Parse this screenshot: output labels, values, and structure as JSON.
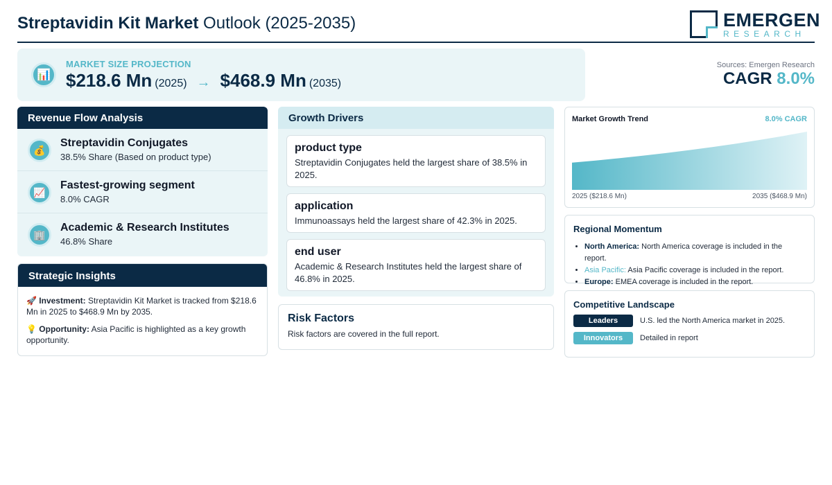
{
  "header": {
    "title_bold": "Streptavidin Kit Market",
    "title_rest": " Outlook (2025-2035)",
    "logo_name": "EMERGEN",
    "logo_sub": "RESEARCH"
  },
  "projection": {
    "label": "MARKET SIZE PROJECTION",
    "icon": "bar-chart-icon",
    "start_value": "$218.6 Mn",
    "start_year": "(2025)",
    "arrow": "→",
    "end_value": "$468.9 Mn",
    "end_year": "(2035)"
  },
  "summary": {
    "sources": "Sources: Emergen Research",
    "cagr_label": "CAGR",
    "cagr_value": "8.0%"
  },
  "revenue_flow": {
    "title": "Revenue Flow Analysis",
    "items": [
      {
        "icon": "money-bag-icon",
        "glyph": "💰",
        "title": "Streptavidin Conjugates",
        "subtitle": "38.5% Share (Based on product type)"
      },
      {
        "icon": "trend-up-icon",
        "glyph": "📈",
        "title": "Fastest-growing segment",
        "subtitle": "8.0% CAGR"
      },
      {
        "icon": "building-icon",
        "glyph": "🏢",
        "title": "Academic & Research Institutes",
        "subtitle": "46.8% Share"
      }
    ]
  },
  "strategic": {
    "title": "Strategic Insights",
    "items": [
      {
        "icon": "rocket-icon",
        "glyph": "🚀",
        "label": "Investment:",
        "text": " Streptavidin Kit Market is tracked from $218.6 Mn in 2025 to $468.9 Mn by 2035."
      },
      {
        "icon": "lightbulb-icon",
        "glyph": "💡",
        "label": "Opportunity:",
        "text": " Asia Pacific is highlighted as a key growth opportunity."
      }
    ]
  },
  "growth_drivers": {
    "title": "Growth Drivers",
    "cards": [
      {
        "title": "product type",
        "text": "Streptavidin Conjugates held the largest share of 38.5% in 2025."
      },
      {
        "title": "application",
        "text": "Immunoassays held the largest share of 42.3% in 2025."
      },
      {
        "title": "end user",
        "text": "Academic & Research Institutes held the largest share of 46.8% in 2025."
      }
    ]
  },
  "risk": {
    "title": "Risk Factors",
    "text": "Risk factors are covered in the full report."
  },
  "trend": {
    "title": "Market Growth Trend",
    "cagr": "8.0% CAGR",
    "start_label": "2025 ($218.6 Mn)",
    "end_label": "2035 ($468.9 Mn)"
  },
  "chart_data": {
    "type": "area",
    "x": [
      2025,
      2035
    ],
    "series": [
      {
        "values": [
          218.6,
          468.9
        ]
      }
    ],
    "colors": {
      "start": "#54b7c8",
      "end": "#dff2f6"
    }
  },
  "regional": {
    "title": "Regional Momentum",
    "items": [
      {
        "region": "North America:",
        "text": " North America coverage is included in the report."
      },
      {
        "region": "Asia Pacific:",
        "text": " Asia Pacific coverage is included in the report."
      },
      {
        "region": "Europe:",
        "text": " EMEA coverage is included in the report."
      }
    ]
  },
  "competitive": {
    "title": "Competitive Landscape",
    "rows": [
      {
        "tag": "Leaders",
        "text": "U.S. led the North America market in 2025."
      },
      {
        "tag": "Innovators",
        "text": "Detailed in report"
      }
    ]
  },
  "colors": {
    "navy": "#0b2a45",
    "teal": "#54b7c8",
    "panel": "#eaf5f7"
  }
}
